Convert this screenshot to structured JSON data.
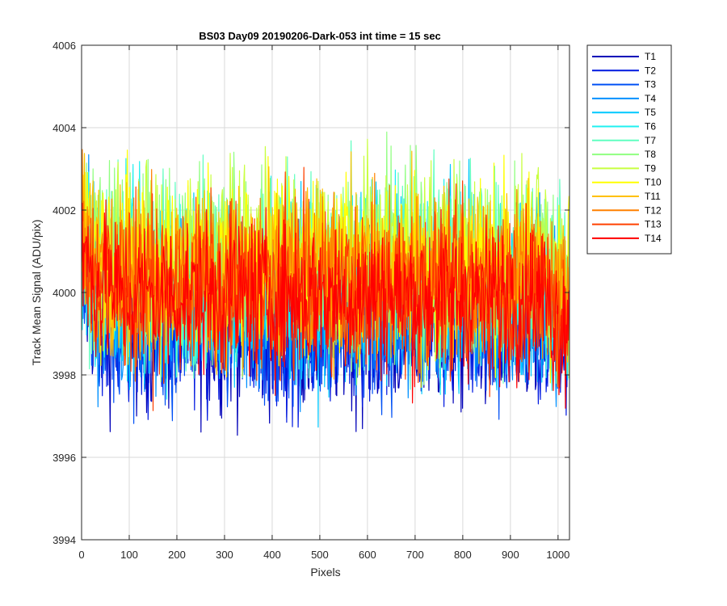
{
  "chart_data": {
    "type": "line",
    "title": "BS03 Day09 20190206-Dark-053 int time = 15 sec",
    "xlabel": "Pixels",
    "ylabel": "Track Mean Signal (ADU/pix)",
    "xlim": [
      0,
      1024
    ],
    "ylim": [
      3994,
      4006
    ],
    "xticks": [
      0,
      100,
      200,
      300,
      400,
      500,
      600,
      700,
      800,
      900,
      1000
    ],
    "yticks": [
      3994,
      3996,
      3998,
      4000,
      4002,
      4004,
      4006
    ],
    "grid": true,
    "legend_position": "outside-top-right",
    "series": [
      {
        "name": "T1",
        "color": "#0000b8",
        "mean": 3999.1,
        "noise": 1.0
      },
      {
        "name": "T2",
        "color": "#0018e0",
        "mean": 3999.2,
        "noise": 1.0
      },
      {
        "name": "T3",
        "color": "#0050f5",
        "mean": 3999.4,
        "noise": 1.0
      },
      {
        "name": "T4",
        "color": "#0090ff",
        "mean": 3999.7,
        "noise": 1.05
      },
      {
        "name": "T5",
        "color": "#00c8ff",
        "mean": 4000.0,
        "noise": 1.1
      },
      {
        "name": "T6",
        "color": "#20f0f0",
        "mean": 4000.3,
        "noise": 1.1
      },
      {
        "name": "T7",
        "color": "#60ffc0",
        "mean": 4000.6,
        "noise": 1.15
      },
      {
        "name": "T8",
        "color": "#90ff80",
        "mean": 4000.8,
        "noise": 1.15
      },
      {
        "name": "T9",
        "color": "#c8ff40",
        "mean": 4000.8,
        "noise": 1.1
      },
      {
        "name": "T10",
        "color": "#ffff00",
        "mean": 4000.7,
        "noise": 1.1
      },
      {
        "name": "T11",
        "color": "#ffc000",
        "mean": 4000.5,
        "noise": 1.05
      },
      {
        "name": "T12",
        "color": "#ff8000",
        "mean": 4000.3,
        "noise": 1.0
      },
      {
        "name": "T13",
        "color": "#ff4000",
        "mean": 4000.1,
        "noise": 1.0
      },
      {
        "name": "T14",
        "color": "#ff0000",
        "mean": 3999.9,
        "noise": 0.95
      }
    ]
  }
}
